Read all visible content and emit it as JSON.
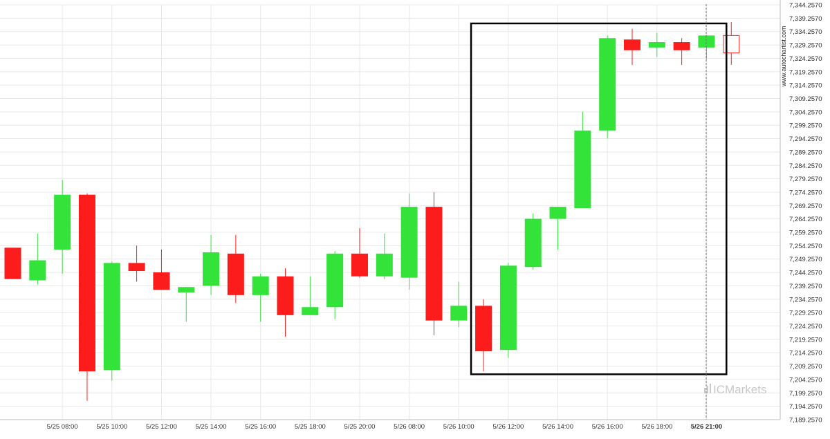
{
  "chart_data": {
    "type": "candlestick",
    "y_ticks": [
      "7,344.2570",
      "7,339.2570",
      "7,334.2570",
      "7,329.2570",
      "7,324.2570",
      "7,319.2570",
      "7,314.2570",
      "7,309.2570",
      "7,304.2570",
      "7,299.2570",
      "7,294.2570",
      "7,289.2570",
      "7,284.2570",
      "7,279.2570",
      "7,274.2570",
      "7,269.2570",
      "7,264.2570",
      "7,259.2570",
      "7,254.2570",
      "7,249.2570",
      "7,244.2570",
      "7,239.2570",
      "7,234.2570",
      "7,229.2570",
      "7,224.2570",
      "7,219.2570",
      "7,214.2570",
      "7,209.2570",
      "7,204.2570",
      "7,199.2570",
      "7,194.2570",
      "7,189.2570"
    ],
    "ylim": [
      7189.257,
      7344.257
    ],
    "x_ticks": [
      {
        "label": "5/25 08:00",
        "index": 2
      },
      {
        "label": "5/25 10:00",
        "index": 4
      },
      {
        "label": "5/25 12:00",
        "index": 6
      },
      {
        "label": "5/25 14:00",
        "index": 8
      },
      {
        "label": "5/25 16:00",
        "index": 10
      },
      {
        "label": "5/25 18:00",
        "index": 12
      },
      {
        "label": "5/25 20:00",
        "index": 14
      },
      {
        "label": "5/26 08:00",
        "index": 16
      },
      {
        "label": "5/26 10:00",
        "index": 18
      },
      {
        "label": "5/26 12:00",
        "index": 20
      },
      {
        "label": "5/26 14:00",
        "index": 22
      },
      {
        "label": "5/26 16:00",
        "index": 24
      },
      {
        "label": "5/26 18:00",
        "index": 26
      },
      {
        "label": "5/26 21:00",
        "index": 28,
        "bold": true
      }
    ],
    "candles": [
      {
        "open": 7253.5,
        "high": 7253.5,
        "low": 7241.8,
        "close": 7241.8
      },
      {
        "open": 7241.3,
        "high": 7258.8,
        "low": 7239.8,
        "close": 7248.8
      },
      {
        "open": 7252.8,
        "high": 7278.8,
        "low": 7243.8,
        "close": 7273.3
      },
      {
        "open": 7273.3,
        "high": 7273.8,
        "low": 7196.3,
        "close": 7207.3
      },
      {
        "open": 7207.8,
        "high": 7248.3,
        "low": 7203.8,
        "close": 7247.8
      },
      {
        "open": 7247.8,
        "high": 7254.3,
        "low": 7240.8,
        "close": 7244.8
      },
      {
        "open": 7244.3,
        "high": 7252.8,
        "low": 7237.8,
        "close": 7237.8
      },
      {
        "open": 7236.8,
        "high": 7238.8,
        "low": 7225.8,
        "close": 7238.8
      },
      {
        "open": 7239.3,
        "high": 7258.3,
        "low": 7235.8,
        "close": 7251.8
      },
      {
        "open": 7251.3,
        "high": 7258.3,
        "low": 7232.8,
        "close": 7235.8
      },
      {
        "open": 7235.8,
        "high": 7243.8,
        "low": 7225.8,
        "close": 7242.8
      },
      {
        "open": 7242.8,
        "high": 7245.8,
        "low": 7220.3,
        "close": 7228.3
      },
      {
        "open": 7228.3,
        "high": 7242.8,
        "low": 7228.3,
        "close": 7231.3
      },
      {
        "open": 7231.3,
        "high": 7252.3,
        "low": 7226.8,
        "close": 7251.3
      },
      {
        "open": 7251.3,
        "high": 7260.8,
        "low": 7242.3,
        "close": 7242.8
      },
      {
        "open": 7242.8,
        "high": 7258.8,
        "low": 7241.8,
        "close": 7251.3
      },
      {
        "open": 7242.3,
        "high": 7273.8,
        "low": 7237.8,
        "close": 7268.8
      },
      {
        "open": 7268.8,
        "high": 7274.3,
        "low": 7220.8,
        "close": 7226.3
      },
      {
        "open": 7226.3,
        "high": 7240.8,
        "low": 7223.8,
        "close": 7231.8
      },
      {
        "open": 7231.8,
        "high": 7234.3,
        "low": 7207.3,
        "close": 7214.8
      },
      {
        "open": 7215.3,
        "high": 7247.8,
        "low": 7212.3,
        "close": 7246.8
      },
      {
        "open": 7246.3,
        "high": 7266.3,
        "low": 7245.3,
        "close": 7264.3
      },
      {
        "open": 7264.3,
        "high": 7268.8,
        "low": 7252.8,
        "close": 7268.8
      },
      {
        "open": 7268.3,
        "high": 7304.3,
        "low": 7268.3,
        "close": 7297.3
      },
      {
        "open": 7297.3,
        "high": 7332.8,
        "low": 7294.3,
        "close": 7331.8
      },
      {
        "open": 7331.3,
        "high": 7335.3,
        "low": 7321.8,
        "close": 7327.3
      },
      {
        "open": 7328.3,
        "high": 7333.8,
        "low": 7324.8,
        "close": 7330.3
      },
      {
        "open": 7330.3,
        "high": 7331.8,
        "low": 7321.8,
        "close": 7327.3
      },
      {
        "open": 7328.3,
        "high": 7332.8,
        "low": 7323.8,
        "close": 7332.8
      },
      {
        "open": 7332.8,
        "high": 7337.8,
        "low": 7321.8,
        "close": 7326.3,
        "hollow": true
      }
    ],
    "highlight_box": {
      "start_index": 19,
      "end_index": 29,
      "y_top": 7337.3,
      "y_bottom": 7206.2
    },
    "marker_index": 28,
    "colors": {
      "up": "#33e33a",
      "down": "#fd1c1c",
      "box": "#000000",
      "grid": "#e8e8e8"
    },
    "grid": true
  },
  "watermark": {
    "side_text": "www.autochartist.com",
    "brand_text": "ICMarkets"
  }
}
